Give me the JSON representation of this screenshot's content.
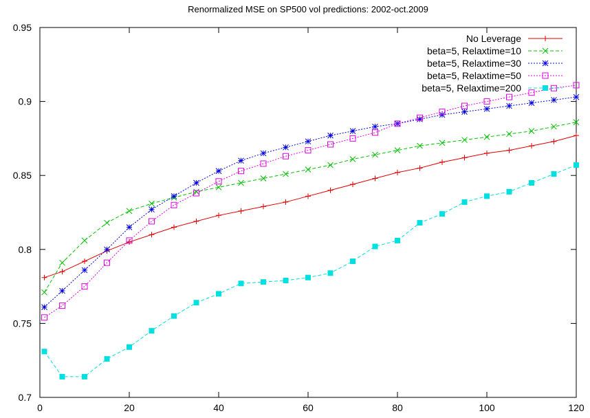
{
  "chart_data": {
    "type": "line",
    "title": "Renormalized MSE on SP500 vol predictions: 2002-oct.2009",
    "xlabel": "",
    "ylabel": "",
    "xlim": [
      0,
      120
    ],
    "ylim": [
      0.7,
      0.95
    ],
    "x_ticks": [
      0,
      20,
      40,
      60,
      80,
      100,
      120
    ],
    "x_tick_labels": [
      "0",
      "20",
      "40",
      "60",
      "80",
      "100",
      "120"
    ],
    "y_ticks": [
      0.7,
      0.75,
      0.8,
      0.85,
      0.9,
      0.95
    ],
    "y_tick_labels": [
      "0.7",
      "0.75",
      "0.8",
      "0.85",
      "0.9",
      "0.95"
    ],
    "grid": false,
    "legend_position": "top-right",
    "x": [
      1,
      5,
      10,
      15,
      20,
      25,
      30,
      35,
      40,
      45,
      50,
      55,
      60,
      65,
      70,
      75,
      80,
      85,
      90,
      95,
      100,
      105,
      110,
      115,
      120
    ],
    "series": [
      {
        "name": "No Leverage",
        "color": "#e00000",
        "marker": "plus",
        "dash": "solid",
        "values": [
          0.781,
          0.785,
          0.792,
          0.799,
          0.805,
          0.81,
          0.815,
          0.819,
          0.823,
          0.826,
          0.829,
          0.832,
          0.836,
          0.84,
          0.844,
          0.848,
          0.852,
          0.855,
          0.859,
          0.862,
          0.865,
          0.867,
          0.87,
          0.873,
          0.877
        ]
      },
      {
        "name": "beta=5, Relaxtime=10",
        "color": "#00c000",
        "marker": "x",
        "dash": "dashed",
        "values": [
          0.771,
          0.791,
          0.806,
          0.818,
          0.826,
          0.831,
          0.835,
          0.839,
          0.842,
          0.845,
          0.848,
          0.851,
          0.854,
          0.857,
          0.861,
          0.864,
          0.867,
          0.87,
          0.872,
          0.874,
          0.876,
          0.878,
          0.88,
          0.883,
          0.886
        ]
      },
      {
        "name": "beta=5, Relaxtime=30",
        "color": "#0000e0",
        "marker": "star",
        "dash": "dotted",
        "values": [
          0.761,
          0.772,
          0.786,
          0.8,
          0.815,
          0.827,
          0.836,
          0.845,
          0.853,
          0.86,
          0.865,
          0.869,
          0.873,
          0.877,
          0.88,
          0.883,
          0.885,
          0.888,
          0.891,
          0.893,
          0.895,
          0.897,
          0.899,
          0.901,
          0.903
        ]
      },
      {
        "name": "beta=5, Relaxtime=50",
        "color": "#e000e0",
        "marker": "square-open",
        "dash": "dotted",
        "values": [
          0.754,
          0.762,
          0.775,
          0.791,
          0.806,
          0.819,
          0.83,
          0.838,
          0.846,
          0.853,
          0.858,
          0.863,
          0.867,
          0.871,
          0.875,
          0.879,
          0.885,
          0.889,
          0.893,
          0.897,
          0.9,
          0.903,
          0.906,
          0.909,
          0.911
        ]
      },
      {
        "name": "beta=5, Relaxtime=200",
        "color": "#00e0e0",
        "marker": "square-filled",
        "dash": "dashed",
        "values": [
          0.731,
          0.714,
          0.714,
          0.726,
          0.734,
          0.745,
          0.755,
          0.764,
          0.77,
          0.777,
          0.778,
          0.779,
          0.781,
          0.784,
          0.792,
          0.802,
          0.806,
          0.818,
          0.824,
          0.832,
          0.836,
          0.839,
          0.845,
          0.851,
          0.857
        ]
      }
    ]
  }
}
